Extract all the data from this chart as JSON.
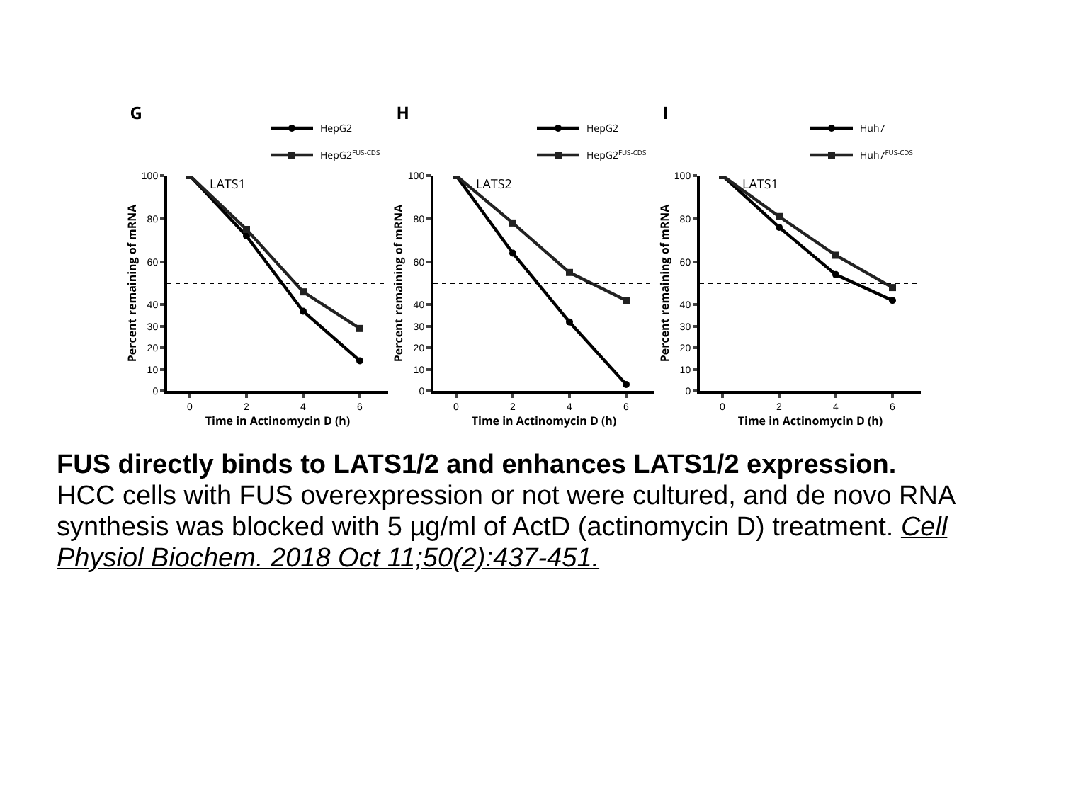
{
  "chart_data": [
    {
      "type": "line",
      "title": "G",
      "annotations": [
        "LATS1"
      ],
      "xlabel": "Time in Actinomycin D (h)",
      "ylabel": "Percent remaining of mRNA",
      "x": [
        0,
        2,
        4,
        6
      ],
      "xlim": [
        -0.8,
        7
      ],
      "xticks": [
        0,
        2,
        4,
        6
      ],
      "ylim": [
        0,
        100
      ],
      "yticks": [
        0,
        10,
        20,
        30,
        40,
        60,
        80,
        100
      ],
      "grid": false,
      "legend": "top right",
      "line_style": "solid",
      "series": [
        {
          "name": "HepG2",
          "color": "#000000",
          "marker": "circle",
          "values": [
            100,
            72,
            37,
            14
          ]
        },
        {
          "name": "HepG2$^{FUS-CDS}$",
          "color": "#222222",
          "marker": "square",
          "values": [
            100,
            75,
            46,
            29
          ]
        }
      ],
      "ref_lines": [
        {
          "axis": "y",
          "value": 50,
          "line_style": "dotted",
          "color": "#000000"
        }
      ]
    },
    {
      "type": "line",
      "title": "H",
      "annotations": [
        "LATS2"
      ],
      "xlabel": "Time in Actinomycin D (h)",
      "ylabel": "Percent remaining of mRNA",
      "x": [
        0,
        2,
        4,
        6
      ],
      "xlim": [
        -0.8,
        7
      ],
      "xticks": [
        0,
        2,
        4,
        6
      ],
      "ylim": [
        0,
        100
      ],
      "yticks": [
        0,
        10,
        20,
        30,
        40,
        60,
        80,
        100
      ],
      "grid": false,
      "legend": "top right",
      "line_style": "solid",
      "series": [
        {
          "name": "HepG2",
          "color": "#000000",
          "marker": "circle",
          "values": [
            100,
            64,
            32,
            3
          ]
        },
        {
          "name": "HepG2$^{FUS-CDS}$",
          "color": "#222222",
          "marker": "square",
          "values": [
            100,
            78,
            55,
            42
          ]
        }
      ],
      "ref_lines": [
        {
          "axis": "y",
          "value": 50,
          "line_style": "dotted",
          "color": "#000000"
        }
      ]
    },
    {
      "type": "line",
      "title": "I",
      "annotations": [
        "LATS1"
      ],
      "xlabel": "Time in Actinomycin D (h)",
      "ylabel": "Percent remaining of mRNA",
      "x": [
        0,
        2,
        4,
        6
      ],
      "xlim": [
        -0.8,
        7
      ],
      "xticks": [
        0,
        2,
        4,
        6
      ],
      "ylim": [
        0,
        100
      ],
      "yticks": [
        0,
        10,
        20,
        30,
        40,
        60,
        80,
        100
      ],
      "grid": false,
      "legend": "top right",
      "line_style": "solid",
      "series": [
        {
          "name": "Huh7",
          "color": "#000000",
          "marker": "circle",
          "values": [
            100,
            76,
            54,
            42
          ]
        },
        {
          "name": "Huh7$^{FUS-CDS}$",
          "color": "#222222",
          "marker": "square",
          "values": [
            100,
            81,
            63,
            48
          ]
        }
      ],
      "ref_lines": [
        {
          "axis": "y",
          "value": 50,
          "line_style": "dotted",
          "color": "#000000"
        }
      ]
    },
    {
      "type": "other",
      "title": "FUS directly binds to LATS1/2 and enhances LATS1/2 expression.",
      "annotations": [
        "HCC cells with FUS overexpression or not were cultured, and de novo RNA synthesis was blocked with 5 µg/ml of ActD (actinomycin D) treatment.",
        "Cell Physiol Biochem. 2018 Oct 11;50(2):437-451."
      ]
    }
  ]
}
